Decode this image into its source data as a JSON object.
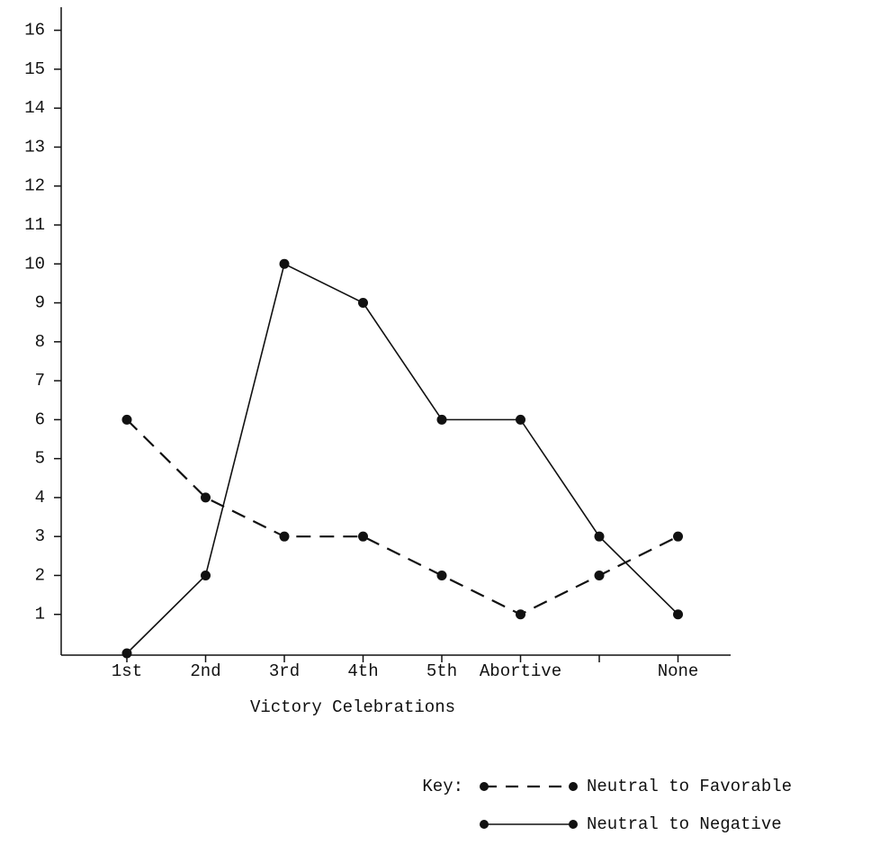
{
  "chart_data": {
    "type": "line",
    "x_label": "Victory Celebrations",
    "categories": [
      "1st",
      "2nd",
      "3rd",
      "4th",
      "5th",
      "Abortive",
      null,
      "None"
    ],
    "series": [
      {
        "name": "Neutral to Favorable",
        "color": "#111111",
        "dash": true,
        "values": [
          6,
          4,
          3,
          3,
          2,
          1,
          2,
          3
        ]
      },
      {
        "name": "Neutral to Negative",
        "color": "#111111",
        "dash": false,
        "values": [
          0,
          2,
          10,
          9,
          6,
          6,
          3,
          1
        ]
      }
    ],
    "ylim": [
      0,
      16.5
    ],
    "yticks": [
      1,
      2,
      3,
      4,
      5,
      6,
      7,
      8,
      9,
      10,
      11,
      12,
      13,
      14,
      15,
      16
    ],
    "legend_title": "Key:",
    "grid": false
  }
}
